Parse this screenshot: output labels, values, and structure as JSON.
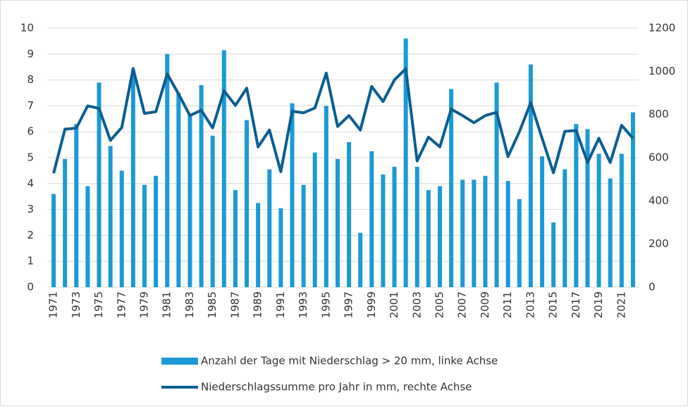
{
  "chart_data": {
    "type": "bar_line",
    "categories": [
      "1971",
      null,
      "1973",
      null,
      "1975",
      null,
      "1977",
      null,
      "1979",
      null,
      "1981",
      null,
      "1983",
      null,
      "1985",
      null,
      "1987",
      null,
      "1989",
      null,
      "1991",
      null,
      "1993",
      null,
      "1995",
      null,
      "1997",
      null,
      "1999",
      null,
      "2001",
      null,
      "2003",
      null,
      "2005",
      null,
      "2007",
      null,
      "2009",
      null,
      "2011",
      null,
      "2013",
      null,
      "2015",
      null,
      "2017",
      null,
      "2019",
      null,
      "2021",
      null
    ],
    "series": [
      {
        "name": "Anzahl der Tage mit Niederschlag > 20 mm, linke Achse",
        "type": "bar",
        "color": "#1b9ad6",
        "values": [
          3.6,
          4.95,
          6.3,
          3.9,
          7.9,
          5.45,
          4.5,
          8.4,
          3.95,
          4.3,
          9.0,
          7.5,
          6.7,
          7.8,
          5.85,
          9.15,
          3.75,
          6.45,
          3.25,
          4.55,
          3.05,
          7.1,
          3.95,
          5.2,
          7.0,
          4.95,
          5.6,
          2.1,
          5.25,
          4.35,
          4.65,
          9.6,
          4.65,
          3.75,
          3.9,
          7.65,
          4.15,
          4.15,
          4.3,
          7.9,
          4.1,
          3.4,
          8.6,
          5.05,
          2.5,
          4.55,
          6.3,
          6.1,
          5.15,
          4.2,
          5.15,
          6.75
        ]
      },
      {
        "name": "Niederschlagssumme pro Jahr in mm, rechte Achse",
        "type": "line",
        "axis": "y2",
        "color": "#0b5e91",
        "values": [
          528,
          732,
          737,
          840,
          828,
          680,
          740,
          1013,
          805,
          813,
          988,
          895,
          795,
          820,
          738,
          910,
          842,
          922,
          650,
          728,
          535,
          815,
          808,
          830,
          992,
          745,
          795,
          728,
          930,
          860,
          960,
          1012,
          585,
          695,
          650,
          825,
          795,
          762,
          795,
          810,
          605,
          720,
          855,
          690,
          530,
          722,
          726,
          578,
          690,
          578,
          750,
          690
        ]
      }
    ],
    "ylim": [
      0,
      10
    ],
    "yticks": [
      0,
      1,
      2,
      3,
      4,
      5,
      6,
      7,
      8,
      9,
      10
    ],
    "y2lim": [
      0,
      1200
    ],
    "y2ticks": [
      0,
      200,
      400,
      600,
      800,
      1000,
      1200
    ],
    "grid": true,
    "legend": "bottom"
  }
}
